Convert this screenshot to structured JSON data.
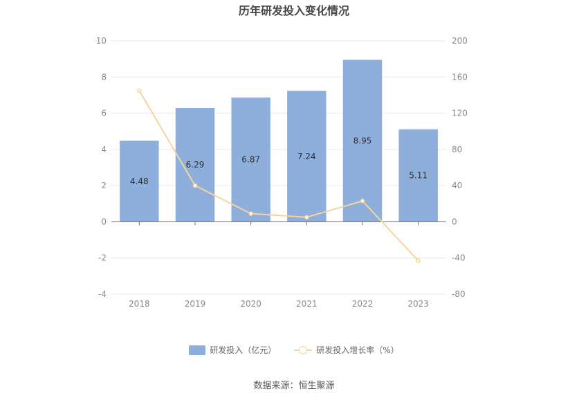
{
  "chart_data": {
    "type": "bar",
    "title": "历年研发投入变化情况",
    "categories": [
      "2018",
      "2019",
      "2020",
      "2021",
      "2022",
      "2023"
    ],
    "series": [
      {
        "name": "研发投入（亿元）",
        "type": "bar",
        "axis": "left",
        "values": [
          4.48,
          6.29,
          6.87,
          7.24,
          8.95,
          5.11
        ],
        "color": "#8eaedb"
      },
      {
        "name": "研发投入增长率（%）",
        "type": "line",
        "axis": "right",
        "values": [
          145,
          40,
          9,
          5,
          23,
          -43
        ],
        "color": "#f5d59b"
      }
    ],
    "y_left": {
      "min": -4,
      "max": 10,
      "ticks": [
        "10",
        "8",
        "6",
        "4",
        "2",
        "0",
        "-2",
        "-4"
      ]
    },
    "y_right": {
      "min": -80,
      "max": 200,
      "ticks": [
        "200",
        "160",
        "120",
        "80",
        "40",
        "0",
        "-40",
        "-80"
      ]
    },
    "grid": true,
    "legend_position": "bottom",
    "source": "数据来源：恒生聚源"
  }
}
